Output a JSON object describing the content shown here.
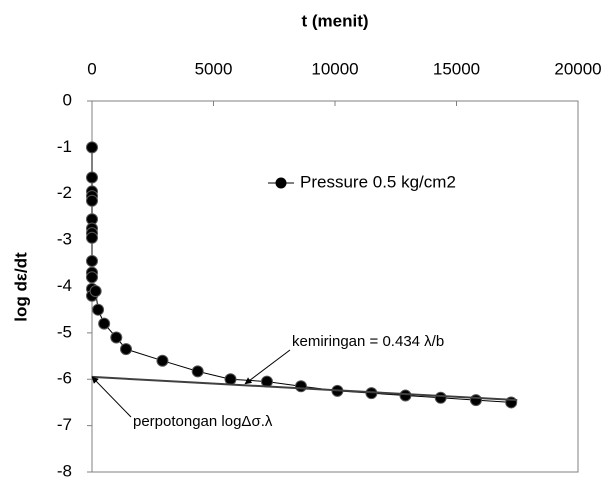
{
  "chart_data": {
    "type": "line",
    "title": "t (menit)",
    "y_label": "log dε/dt",
    "x": [
      0,
      0,
      0,
      0,
      0,
      0,
      0,
      0,
      0,
      0,
      0,
      0,
      0,
      0,
      150,
      250,
      500,
      1000,
      1400,
      2900,
      4350,
      5700,
      7200,
      8600,
      10100,
      11500,
      12900,
      14350,
      15800,
      17250
    ],
    "series": [
      {
        "name": "Pressure 0.5 kg/cm2",
        "color": "#000000",
        "values": [
          -1,
          -1.65,
          -1.95,
          -2.05,
          -2.15,
          -2.55,
          -2.75,
          -2.85,
          -2.95,
          -3.45,
          -3.7,
          -3.8,
          -4.05,
          -4.2,
          -4.1,
          -4.5,
          -4.8,
          -5.1,
          -5.35,
          -5.6,
          -5.83,
          -6.0,
          -6.05,
          -6.15,
          -6.25,
          -6.3,
          -6.35,
          -6.4,
          -6.45,
          -6.5
        ]
      }
    ],
    "fit_line": {
      "x": [
        0,
        17500
      ],
      "values": [
        -5.95,
        -6.45
      ]
    },
    "annotations": [
      {
        "text": "kemiringan = 0.434 λ/b",
        "x": 6300,
        "y": -6.1
      },
      {
        "text": "perpotongan logΔσ.λ",
        "x": 0,
        "y": -5.95
      }
    ],
    "xlim": [
      0,
      20000
    ],
    "xticks": [
      0,
      5000,
      10000,
      15000,
      20000
    ],
    "ylim": [
      -8,
      0
    ],
    "yticks": [
      0,
      -1,
      -2,
      -3,
      -4,
      -5,
      -6,
      -7,
      -8
    ],
    "legend": "upper right"
  }
}
